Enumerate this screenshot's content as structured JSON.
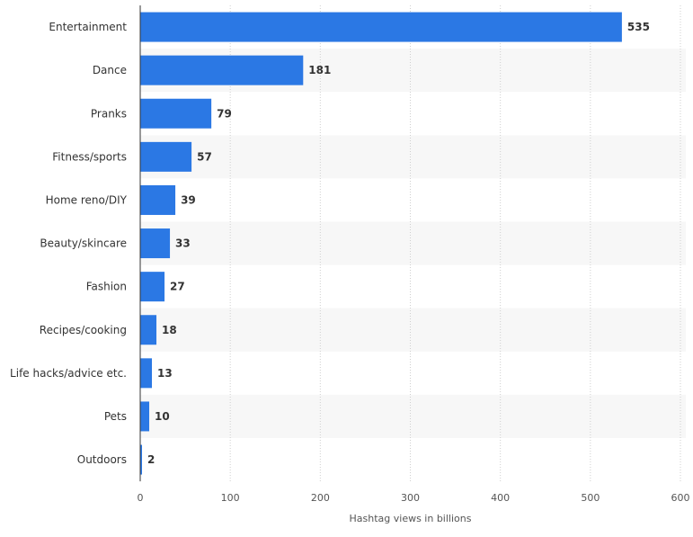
{
  "chart_data": {
    "type": "bar",
    "orientation": "horizontal",
    "categories": [
      "Entertainment",
      "Dance",
      "Pranks",
      "Fitness/sports",
      "Home reno/DIY",
      "Beauty/skincare",
      "Fashion",
      "Recipes/cooking",
      "Life hacks/advice etc.",
      "Pets",
      "Outdoors"
    ],
    "values": [
      535,
      181,
      79,
      57,
      39,
      33,
      27,
      18,
      13,
      10,
      2
    ],
    "xlabel": "Hashtag views in billions",
    "ylabel": "",
    "xlim": [
      0,
      600
    ],
    "x_ticks": [
      0,
      100,
      200,
      300,
      400,
      500,
      600
    ],
    "grid": true,
    "legend": "none",
    "colors": {
      "bar": "#2b78e4",
      "band": "#f7f7f7",
      "grid": "#cfcfcf",
      "axis": "#333333"
    }
  }
}
